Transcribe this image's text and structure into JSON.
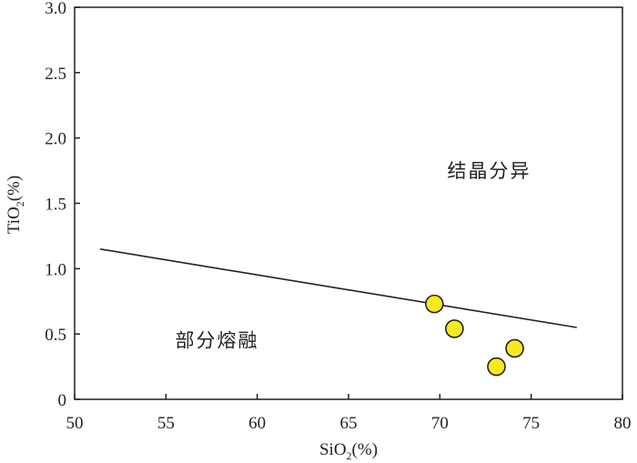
{
  "chart_data": {
    "type": "scatter",
    "title": "",
    "xlabel": {
      "prefix": "SiO",
      "sub": "2",
      "suffix": "(%)"
    },
    "ylabel": {
      "prefix": "TiO",
      "sub": "2",
      "suffix": "(%)"
    },
    "xlim": [
      50,
      80
    ],
    "ylim": [
      0,
      3.0
    ],
    "x_ticks": [
      50,
      55,
      60,
      65,
      70,
      75,
      80
    ],
    "x_tick_labels": [
      "50",
      "55",
      "60",
      "65",
      "70",
      "75",
      "80"
    ],
    "y_ticks": [
      0,
      0.5,
      1.0,
      1.5,
      2.0,
      2.5,
      3.0
    ],
    "y_tick_labels": [
      "0",
      "0.5",
      "1.0",
      "1.5",
      "2.0",
      "2.5",
      "3.0"
    ],
    "grid": false,
    "points": [
      {
        "x": 69.7,
        "y": 0.73
      },
      {
        "x": 70.8,
        "y": 0.54
      },
      {
        "x": 74.1,
        "y": 0.39
      },
      {
        "x": 73.1,
        "y": 0.25
      }
    ],
    "point_color": "#f6ea1e",
    "point_edge_color": "#231f20",
    "boundary_line": {
      "x": [
        51.4,
        77.5
      ],
      "y": [
        1.15,
        0.55
      ]
    },
    "region_labels": [
      {
        "text": "结晶分异",
        "x": 72.7,
        "y": 1.7
      },
      {
        "text": "部分熔融",
        "x": 57.8,
        "y": 0.4
      }
    ]
  }
}
